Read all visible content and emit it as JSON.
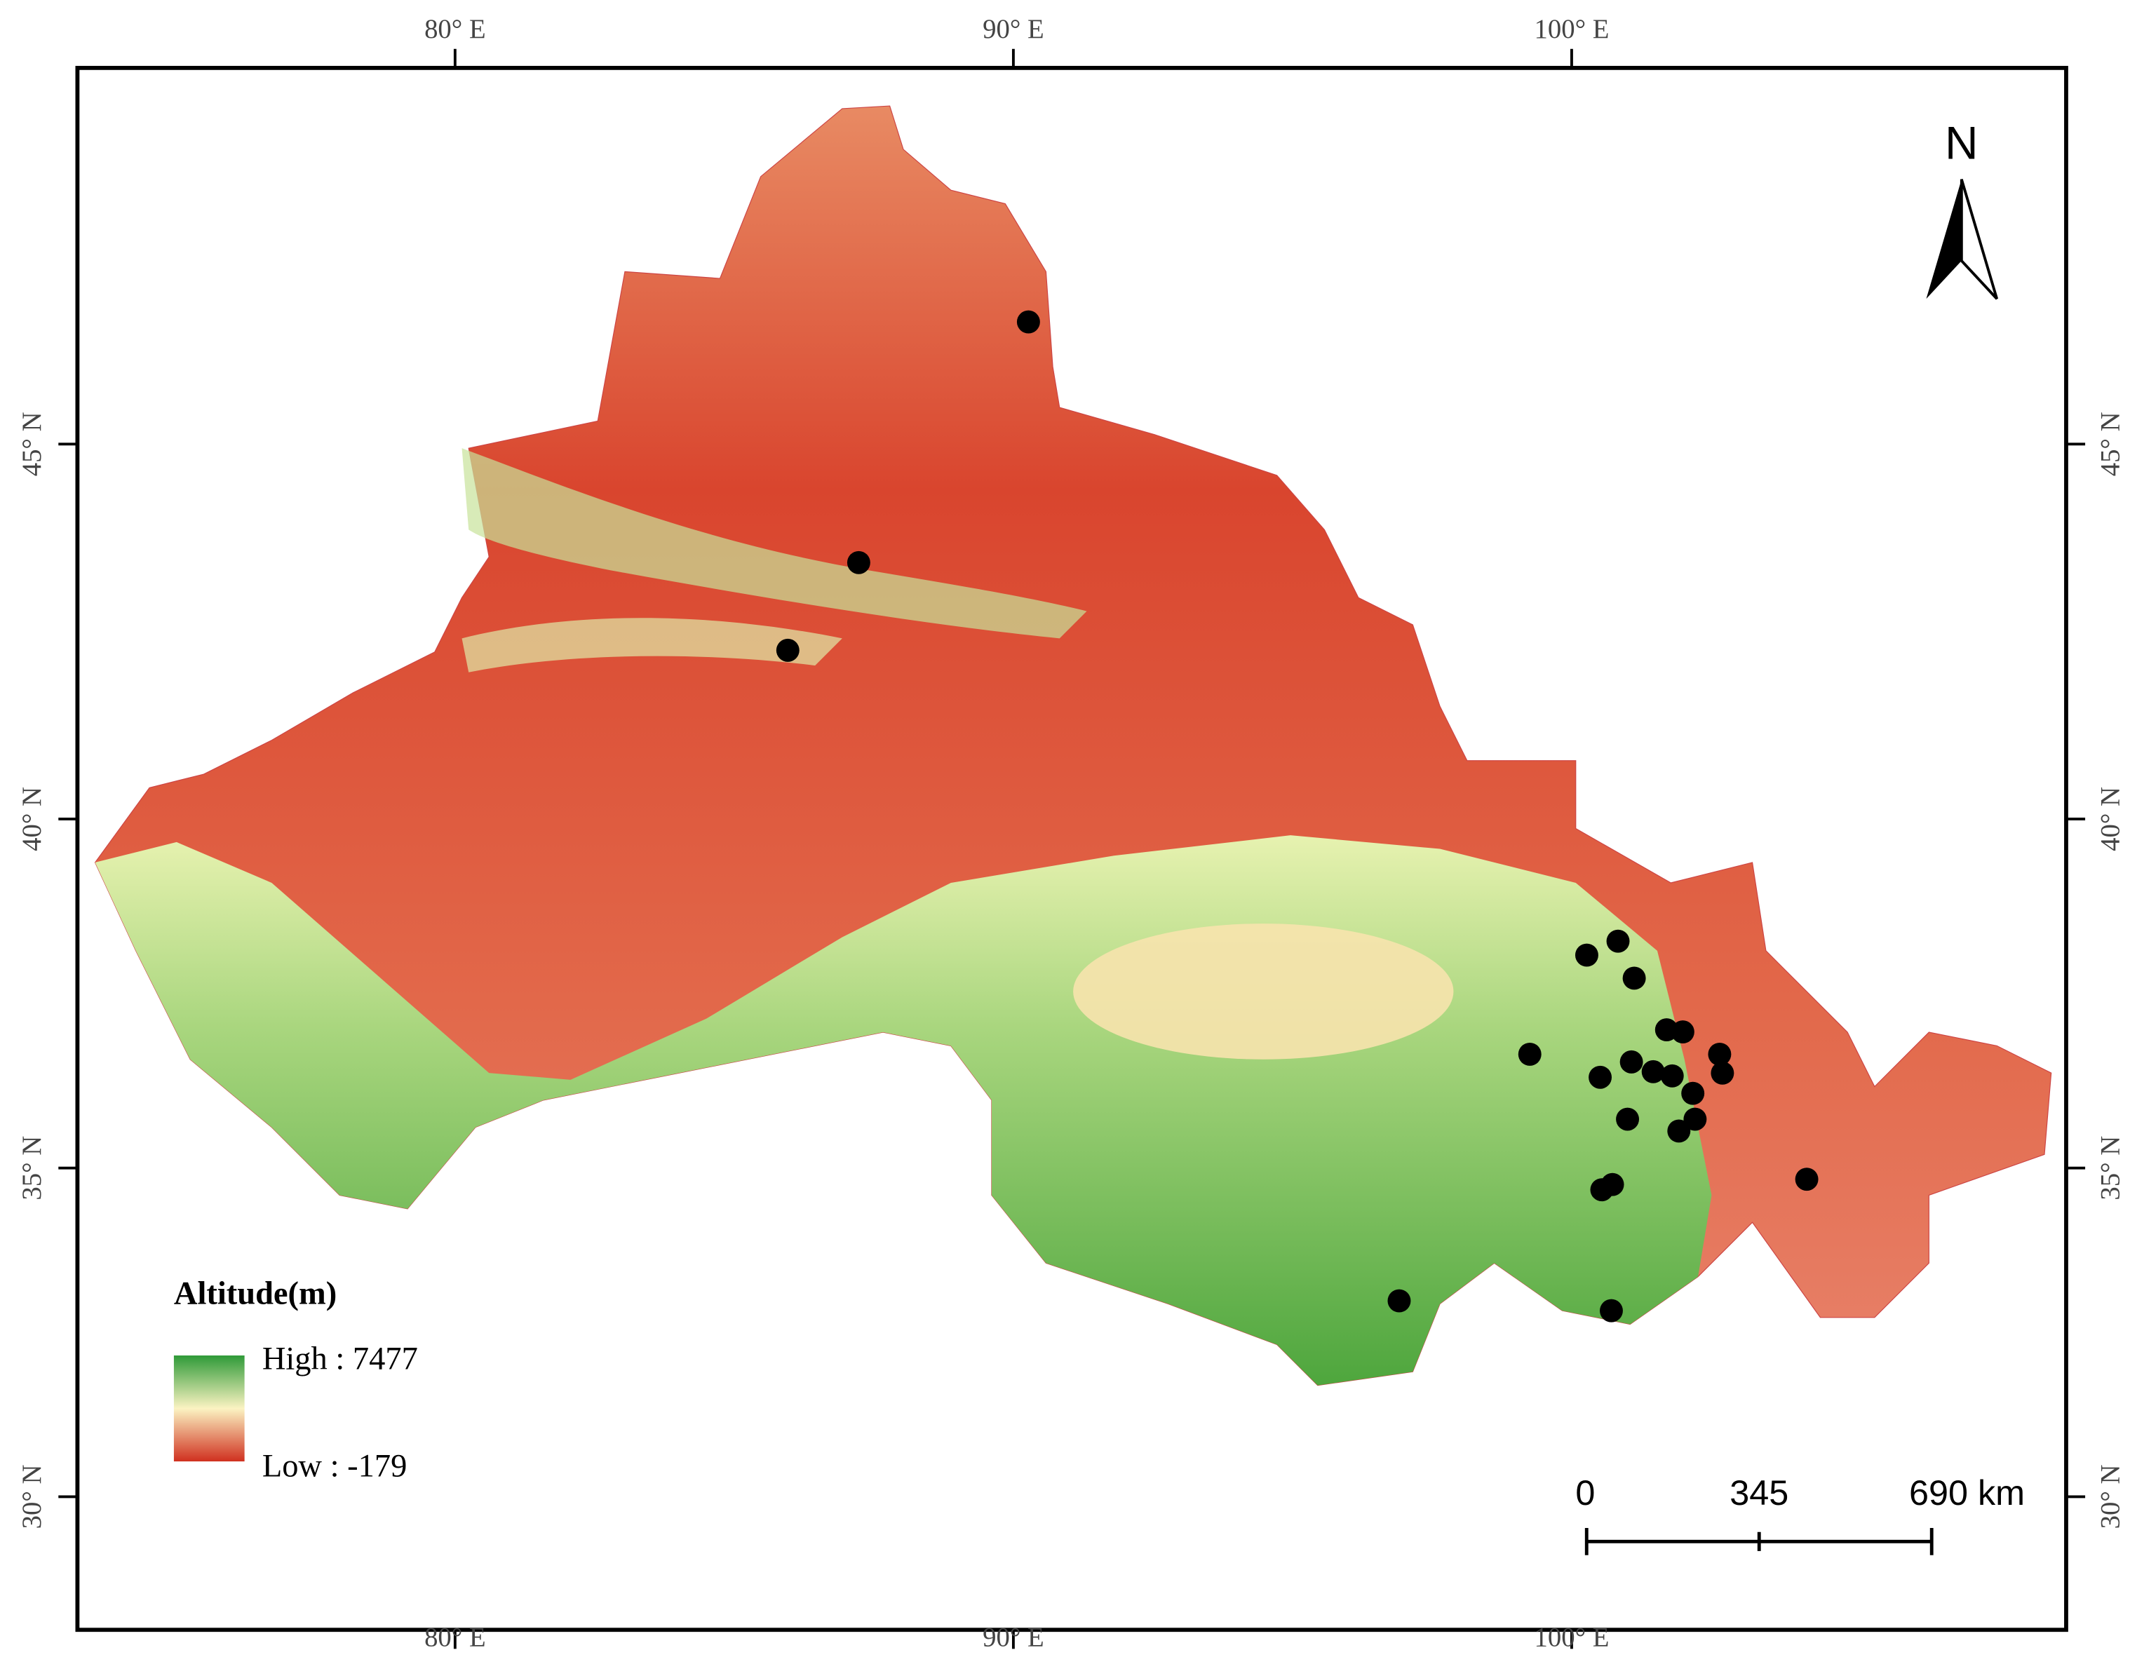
{
  "map": {
    "lon_ticks": [
      {
        "value": 80,
        "label": "80° E"
      },
      {
        "value": 90,
        "label": "90° E"
      },
      {
        "value": 100,
        "label": "100° E"
      }
    ],
    "lat_ticks": [
      {
        "value": 30,
        "label": "30° N"
      },
      {
        "value": 35,
        "label": "35° N"
      },
      {
        "value": 40,
        "label": "40° N"
      },
      {
        "value": 45,
        "label": "45° N"
      }
    ],
    "north": "N",
    "legend": {
      "title": "Altitude(m)",
      "high": "High : 7477",
      "low": "Low : -179"
    },
    "scale_bar": {
      "labels": [
        "0",
        "345",
        "690 km"
      ]
    },
    "points": [
      {
        "lon": 90.27,
        "lat": 46.63
      },
      {
        "lon": 87.23,
        "lat": 43.42
      },
      {
        "lon": 85.96,
        "lat": 42.25
      },
      {
        "lon": 100.83,
        "lat": 38.25
      },
      {
        "lon": 100.27,
        "lat": 38.05
      },
      {
        "lon": 101.12,
        "lat": 37.72
      },
      {
        "lon": 101.7,
        "lat": 36.98
      },
      {
        "lon": 101.99,
        "lat": 36.95
      },
      {
        "lon": 99.25,
        "lat": 36.63
      },
      {
        "lon": 102.65,
        "lat": 36.63
      },
      {
        "lon": 101.07,
        "lat": 36.52
      },
      {
        "lon": 101.46,
        "lat": 36.38
      },
      {
        "lon": 101.8,
        "lat": 36.32
      },
      {
        "lon": 100.51,
        "lat": 36.3
      },
      {
        "lon": 102.7,
        "lat": 36.36
      },
      {
        "lon": 102.17,
        "lat": 36.07
      },
      {
        "lon": 102.21,
        "lat": 35.7
      },
      {
        "lon": 101.0,
        "lat": 35.7
      },
      {
        "lon": 101.92,
        "lat": 35.53
      },
      {
        "lon": 104.21,
        "lat": 34.83
      },
      {
        "lon": 100.73,
        "lat": 34.75
      },
      {
        "lon": 100.54,
        "lat": 34.67
      },
      {
        "lon": 96.91,
        "lat": 32.98
      },
      {
        "lon": 100.71,
        "lat": 32.83
      }
    ]
  }
}
